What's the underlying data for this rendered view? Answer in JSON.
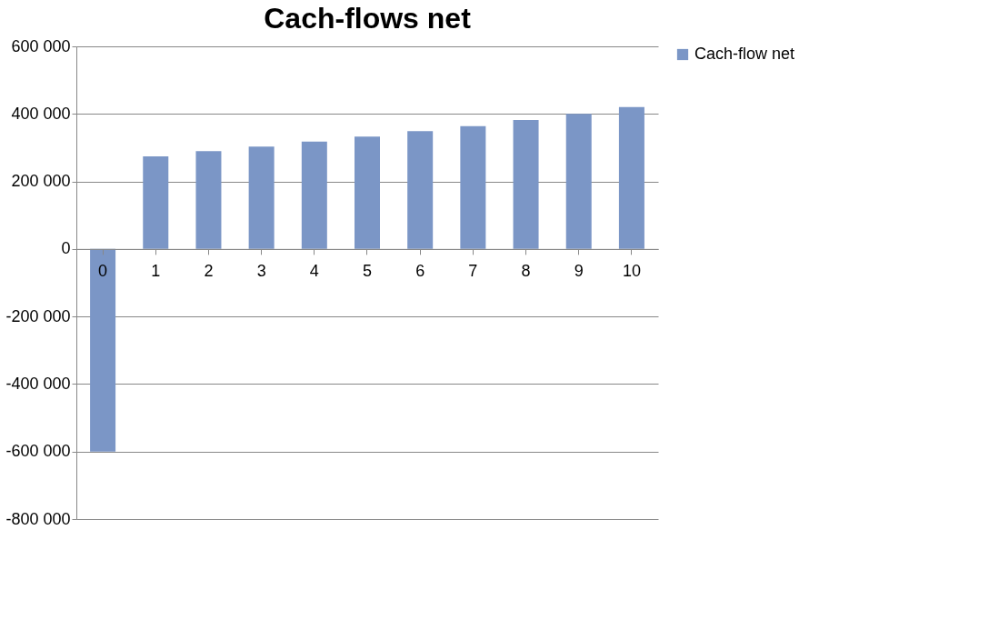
{
  "chart_data": {
    "type": "bar",
    "title": "Cach-flows net",
    "categories": [
      "0",
      "1",
      "2",
      "3",
      "4",
      "5",
      "6",
      "7",
      "8",
      "9",
      "10"
    ],
    "series": [
      {
        "name": "Cach-flow net",
        "color": "#7b96c6",
        "values": [
          -600000,
          274000,
          290000,
          303000,
          318000,
          333000,
          349000,
          364000,
          382000,
          400000,
          420000
        ]
      }
    ],
    "ylim": [
      -800000,
      600000
    ],
    "yticks": [
      {
        "value": -800000,
        "label": "-800 000"
      },
      {
        "value": -600000,
        "label": "-600 000"
      },
      {
        "value": -400000,
        "label": "-400 000"
      },
      {
        "value": -200000,
        "label": "-200 000"
      },
      0,
      {
        "value": 200000,
        "label": "200 000"
      },
      {
        "value": 400000,
        "label": "400 000"
      },
      {
        "value": 600000,
        "label": "600 000"
      }
    ],
    "grid": "y",
    "legend": "right"
  }
}
